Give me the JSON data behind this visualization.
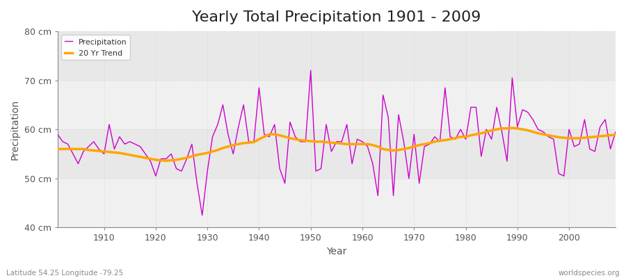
{
  "title": "Yearly Total Precipitation 1901 - 2009",
  "xlabel": "Year",
  "ylabel": "Precipitation",
  "years": [
    1901,
    1902,
    1903,
    1904,
    1905,
    1906,
    1907,
    1908,
    1909,
    1910,
    1911,
    1912,
    1913,
    1914,
    1915,
    1916,
    1917,
    1918,
    1919,
    1920,
    1921,
    1922,
    1923,
    1924,
    1925,
    1926,
    1927,
    1928,
    1929,
    1930,
    1931,
    1932,
    1933,
    1934,
    1935,
    1936,
    1937,
    1938,
    1939,
    1940,
    1941,
    1942,
    1943,
    1944,
    1945,
    1946,
    1947,
    1948,
    1949,
    1950,
    1951,
    1952,
    1953,
    1954,
    1955,
    1956,
    1957,
    1958,
    1959,
    1960,
    1961,
    1962,
    1963,
    1964,
    1965,
    1966,
    1967,
    1968,
    1969,
    1970,
    1971,
    1972,
    1973,
    1974,
    1975,
    1976,
    1977,
    1978,
    1979,
    1980,
    1981,
    1982,
    1983,
    1984,
    1985,
    1986,
    1987,
    1988,
    1989,
    1990,
    1991,
    1992,
    1993,
    1994,
    1995,
    1996,
    1997,
    1998,
    1999,
    2000,
    2001,
    2002,
    2003,
    2004,
    2005,
    2006,
    2007,
    2008,
    2009
  ],
  "precip": [
    59.0,
    57.5,
    57.0,
    55.0,
    53.0,
    55.5,
    56.5,
    57.5,
    56.0,
    55.0,
    61.0,
    56.0,
    58.5,
    57.0,
    57.5,
    57.0,
    56.5,
    55.0,
    53.5,
    50.5,
    54.0,
    54.0,
    55.0,
    52.0,
    51.5,
    54.0,
    57.0,
    49.0,
    42.5,
    51.5,
    58.5,
    61.0,
    65.0,
    59.0,
    55.0,
    60.5,
    65.0,
    57.5,
    57.5,
    68.5,
    59.0,
    58.5,
    61.0,
    52.0,
    49.0,
    61.5,
    58.5,
    57.5,
    57.5,
    72.0,
    51.5,
    52.0,
    61.0,
    55.5,
    57.5,
    57.5,
    61.0,
    53.0,
    58.0,
    57.5,
    56.5,
    53.0,
    46.5,
    67.0,
    62.5,
    46.5,
    63.0,
    57.5,
    50.0,
    59.0,
    49.0,
    56.5,
    57.0,
    58.5,
    57.5,
    68.5,
    58.5,
    58.0,
    60.0,
    58.0,
    64.5,
    64.5,
    54.5,
    60.0,
    58.0,
    64.5,
    59.5,
    53.5,
    70.5,
    60.5,
    64.0,
    63.5,
    62.0,
    60.0,
    59.5,
    58.5,
    58.0,
    51.0,
    50.5,
    60.0,
    56.5,
    57.0,
    62.0,
    56.0,
    55.5,
    60.5,
    62.0,
    56.0,
    59.5
  ],
  "trend": [
    56.0,
    56.0,
    56.0,
    56.0,
    56.0,
    56.0,
    55.8,
    55.7,
    55.6,
    55.5,
    55.4,
    55.3,
    55.2,
    55.0,
    54.8,
    54.6,
    54.4,
    54.2,
    54.0,
    53.8,
    53.7,
    53.6,
    53.7,
    53.8,
    54.0,
    54.2,
    54.5,
    54.8,
    55.0,
    55.2,
    55.5,
    55.8,
    56.2,
    56.5,
    56.8,
    57.0,
    57.2,
    57.3,
    57.4,
    58.0,
    58.5,
    59.0,
    59.0,
    58.8,
    58.5,
    58.2,
    58.0,
    57.8,
    57.7,
    57.6,
    57.5,
    57.5,
    57.4,
    57.3,
    57.2,
    57.1,
    57.0,
    57.0,
    57.0,
    57.0,
    57.0,
    56.8,
    56.5,
    56.0,
    55.8,
    55.7,
    55.8,
    56.0,
    56.2,
    56.5,
    56.8,
    57.0,
    57.2,
    57.5,
    57.7,
    57.8,
    58.0,
    58.2,
    58.5,
    58.5,
    58.8,
    59.0,
    59.2,
    59.5,
    59.8,
    60.0,
    60.2,
    60.2,
    60.3,
    60.2,
    60.0,
    59.8,
    59.5,
    59.2,
    59.0,
    58.8,
    58.6,
    58.4,
    58.3,
    58.2,
    58.2,
    58.2,
    58.3,
    58.4,
    58.5,
    58.6,
    58.7,
    58.8,
    58.9
  ],
  "precip_color": "#cc00cc",
  "trend_color": "#FFA500",
  "bg_color": "#ffffff",
  "plot_bg_color": "#e8e8e8",
  "plot_bg_light": "#f0f0f0",
  "grid_color": "#cccccc",
  "grid_band_color": "#e0e0e0",
  "spine_color": "#888888",
  "ylim": [
    40,
    80
  ],
  "yticks": [
    40,
    50,
    60,
    70,
    80
  ],
  "ytick_labels": [
    "40 cm",
    "50 cm",
    "60 cm",
    "70 cm",
    "80 cm"
  ],
  "xlim": [
    1901,
    2009
  ],
  "title_fontsize": 16,
  "axis_label_fontsize": 10,
  "tick_fontsize": 9,
  "legend_label_precip": "Precipitation",
  "legend_label_trend": "20 Yr Trend",
  "footnote_left": "Latitude 54.25 Longitude -79.25",
  "footnote_right": "worldspecies.org"
}
